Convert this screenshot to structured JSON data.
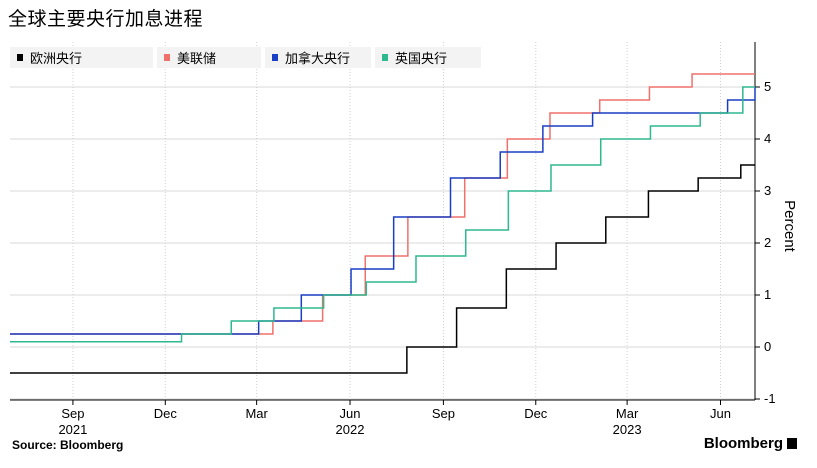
{
  "title": "全球主要央行加息进程",
  "source": "Source: Bloomberg",
  "brand": "Bloomberg",
  "chart_data": {
    "type": "line",
    "step": true,
    "ylabel": "Percent",
    "ylim": [
      -1,
      5.8
    ],
    "yticks": [
      -1,
      0,
      1,
      2,
      3,
      4,
      5
    ],
    "xlim": [
      "2021-07-01",
      "2023-07-05"
    ],
    "x_ticks": [
      {
        "date": "2021-09-01",
        "label": "Sep"
      },
      {
        "date": "2021-12-01",
        "label": "Dec"
      },
      {
        "date": "2022-03-01",
        "label": "Mar"
      },
      {
        "date": "2022-06-01",
        "label": "Jun"
      },
      {
        "date": "2022-09-01",
        "label": "Sep"
      },
      {
        "date": "2022-12-01",
        "label": "Dec"
      },
      {
        "date": "2023-03-01",
        "label": "Mar"
      },
      {
        "date": "2023-06-01",
        "label": "Jun"
      }
    ],
    "year_labels": [
      {
        "date": "2021-09-01",
        "label": "2021"
      },
      {
        "date": "2022-06-01",
        "label": "2022"
      },
      {
        "date": "2023-03-01",
        "label": "2023"
      }
    ],
    "grid": true,
    "legend_position": "top",
    "series": [
      {
        "name": "欧洲央行",
        "color": "#000000",
        "points": [
          [
            "2021-07-01",
            -0.5
          ],
          [
            "2022-07-27",
            0
          ],
          [
            "2022-09-14",
            0.75
          ],
          [
            "2022-11-02",
            1.5
          ],
          [
            "2022-12-21",
            2.0
          ],
          [
            "2023-02-08",
            2.5
          ],
          [
            "2023-03-22",
            3.0
          ],
          [
            "2023-05-10",
            3.25
          ],
          [
            "2023-06-21",
            3.5
          ],
          [
            "2023-07-05",
            3.5
          ]
        ]
      },
      {
        "name": "美联储",
        "color": "#f0706c",
        "points": [
          [
            "2021-07-01",
            0.25
          ],
          [
            "2022-03-17",
            0.5
          ],
          [
            "2022-05-05",
            1.0
          ],
          [
            "2022-06-16",
            1.75
          ],
          [
            "2022-07-28",
            2.5
          ],
          [
            "2022-09-22",
            3.25
          ],
          [
            "2022-11-03",
            4.0
          ],
          [
            "2022-12-15",
            4.5
          ],
          [
            "2023-02-02",
            4.75
          ],
          [
            "2023-03-23",
            5.0
          ],
          [
            "2023-05-04",
            5.25
          ],
          [
            "2023-07-05",
            5.25
          ]
        ]
      },
      {
        "name": "加拿大央行",
        "color": "#1a3fc4",
        "points": [
          [
            "2021-07-01",
            0.25
          ],
          [
            "2022-03-03",
            0.5
          ],
          [
            "2022-04-14",
            1.0
          ],
          [
            "2022-06-02",
            1.5
          ],
          [
            "2022-07-14",
            2.5
          ],
          [
            "2022-09-08",
            3.25
          ],
          [
            "2022-10-27",
            3.75
          ],
          [
            "2022-12-08",
            4.25
          ],
          [
            "2023-01-26",
            4.5
          ],
          [
            "2023-06-08",
            4.75
          ],
          [
            "2023-07-05",
            5.0
          ]
        ]
      },
      {
        "name": "英国央行",
        "color": "#2eb88e",
        "points": [
          [
            "2021-07-01",
            0.1
          ],
          [
            "2021-12-17",
            0.25
          ],
          [
            "2022-02-04",
            0.5
          ],
          [
            "2022-03-18",
            0.75
          ],
          [
            "2022-05-06",
            1.0
          ],
          [
            "2022-06-17",
            1.25
          ],
          [
            "2022-08-05",
            1.75
          ],
          [
            "2022-09-23",
            2.25
          ],
          [
            "2022-11-04",
            3.0
          ],
          [
            "2022-12-16",
            3.5
          ],
          [
            "2023-02-03",
            4.0
          ],
          [
            "2023-03-24",
            4.25
          ],
          [
            "2023-05-12",
            4.5
          ],
          [
            "2023-06-23",
            5.0
          ],
          [
            "2023-07-05",
            5.0
          ]
        ]
      }
    ]
  }
}
